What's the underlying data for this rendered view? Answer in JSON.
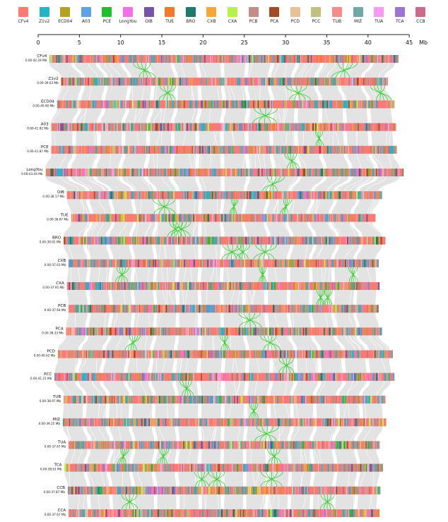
{
  "legend": [
    {
      "name": "CFv4",
      "color": "#F97B72"
    },
    {
      "name": "Z1v2",
      "color": "#21B5C6"
    },
    {
      "name": "ECD04",
      "color": "#B5A21E"
    },
    {
      "name": "A03",
      "color": "#5EA1E5"
    },
    {
      "name": "PCE",
      "color": "#1FBF2D"
    },
    {
      "name": "LongYou",
      "color": "#F56EE6"
    },
    {
      "name": "OIB",
      "color": "#7654A8"
    },
    {
      "name": "TUE",
      "color": "#F07A2A"
    },
    {
      "name": "BRO",
      "color": "#1E7A69"
    },
    {
      "name": "CXB",
      "color": "#F5A836"
    },
    {
      "name": "CXA",
      "color": "#B5F24A"
    },
    {
      "name": "PCB",
      "color": "#C48D8B"
    },
    {
      "name": "PCA",
      "color": "#A34B25"
    },
    {
      "name": "PCD",
      "color": "#E8C196"
    },
    {
      "name": "PCC",
      "color": "#C2C07E"
    },
    {
      "name": "TUB",
      "color": "#F48C8C"
    },
    {
      "name": "MIZ",
      "color": "#6FA9A7"
    },
    {
      "name": "TUA",
      "color": "#F79AF0"
    },
    {
      "name": "TCA",
      "color": "#9C74D6"
    },
    {
      "name": "CCB",
      "color": "#CC6A8A"
    }
  ],
  "axis": {
    "ticks": [
      0,
      5,
      10,
      15,
      20,
      25,
      30,
      35,
      40,
      45
    ],
    "unit": "Mb",
    "max": 45
  },
  "genomes": [
    {
      "name": "CFv4",
      "range": "0.00-42.29 Mb",
      "start": 1.4,
      "end": 43.7
    },
    {
      "name": "Z1v2",
      "range": "0.00-39.63 Mb",
      "start": 2.8,
      "end": 42.4
    },
    {
      "name": "ECD04",
      "range": "0.00-40.90 Mb",
      "start": 2.3,
      "end": 43.2
    },
    {
      "name": "A03",
      "range": "0.00-41.82 Mb",
      "start": 1.6,
      "end": 43.4
    },
    {
      "name": "PCE",
      "range": "0.00-41.87 Mb",
      "start": 1.6,
      "end": 43.5
    },
    {
      "name": "LongYou",
      "range": "0.00-43.44 Mb",
      "start": 0.9,
      "end": 44.3
    },
    {
      "name": "OIB",
      "range": "0.00-38.17 Mb",
      "start": 3.5,
      "end": 41.7
    },
    {
      "name": "TUE",
      "range": "0.00-36.87 Mb",
      "start": 4.0,
      "end": 40.9
    },
    {
      "name": "BRO",
      "range": "0.00-39.02 Mb",
      "start": 3.1,
      "end": 42.1
    },
    {
      "name": "CXB",
      "range": "0.00-37.63 Mb",
      "start": 3.7,
      "end": 41.3
    },
    {
      "name": "CXA",
      "range": "0.00-37.91 Mb",
      "start": 3.5,
      "end": 41.4
    },
    {
      "name": "PCB",
      "range": "0.00-37.64 Mb",
      "start": 3.7,
      "end": 41.3
    },
    {
      "name": "PCA",
      "range": "0.00-38.33 Mb",
      "start": 3.4,
      "end": 41.7
    },
    {
      "name": "PCD",
      "range": "0.00-40.62 Mb",
      "start": 2.4,
      "end": 43.0
    },
    {
      "name": "PCC",
      "range": "0.00-41.21 Mb",
      "start": 2.0,
      "end": 43.2
    },
    {
      "name": "TUB",
      "range": "0.00-38.97 Mb",
      "start": 3.1,
      "end": 42.1
    },
    {
      "name": "MIZ",
      "range": "0.00-39.25 Mb",
      "start": 3.0,
      "end": 42.2
    },
    {
      "name": "TUA",
      "range": "0.00-37.67 Mb",
      "start": 3.7,
      "end": 41.4
    },
    {
      "name": "TCA",
      "range": "0.00-38.61 Mb",
      "start": 3.2,
      "end": 41.8
    },
    {
      "name": "CCB",
      "range": "0.00-37.87 Mb",
      "start": 3.6,
      "end": 41.5
    },
    {
      "name": "CCA",
      "range": "0.00-37.67 Mb",
      "start": 3.7,
      "end": 41.4
    }
  ]
}
